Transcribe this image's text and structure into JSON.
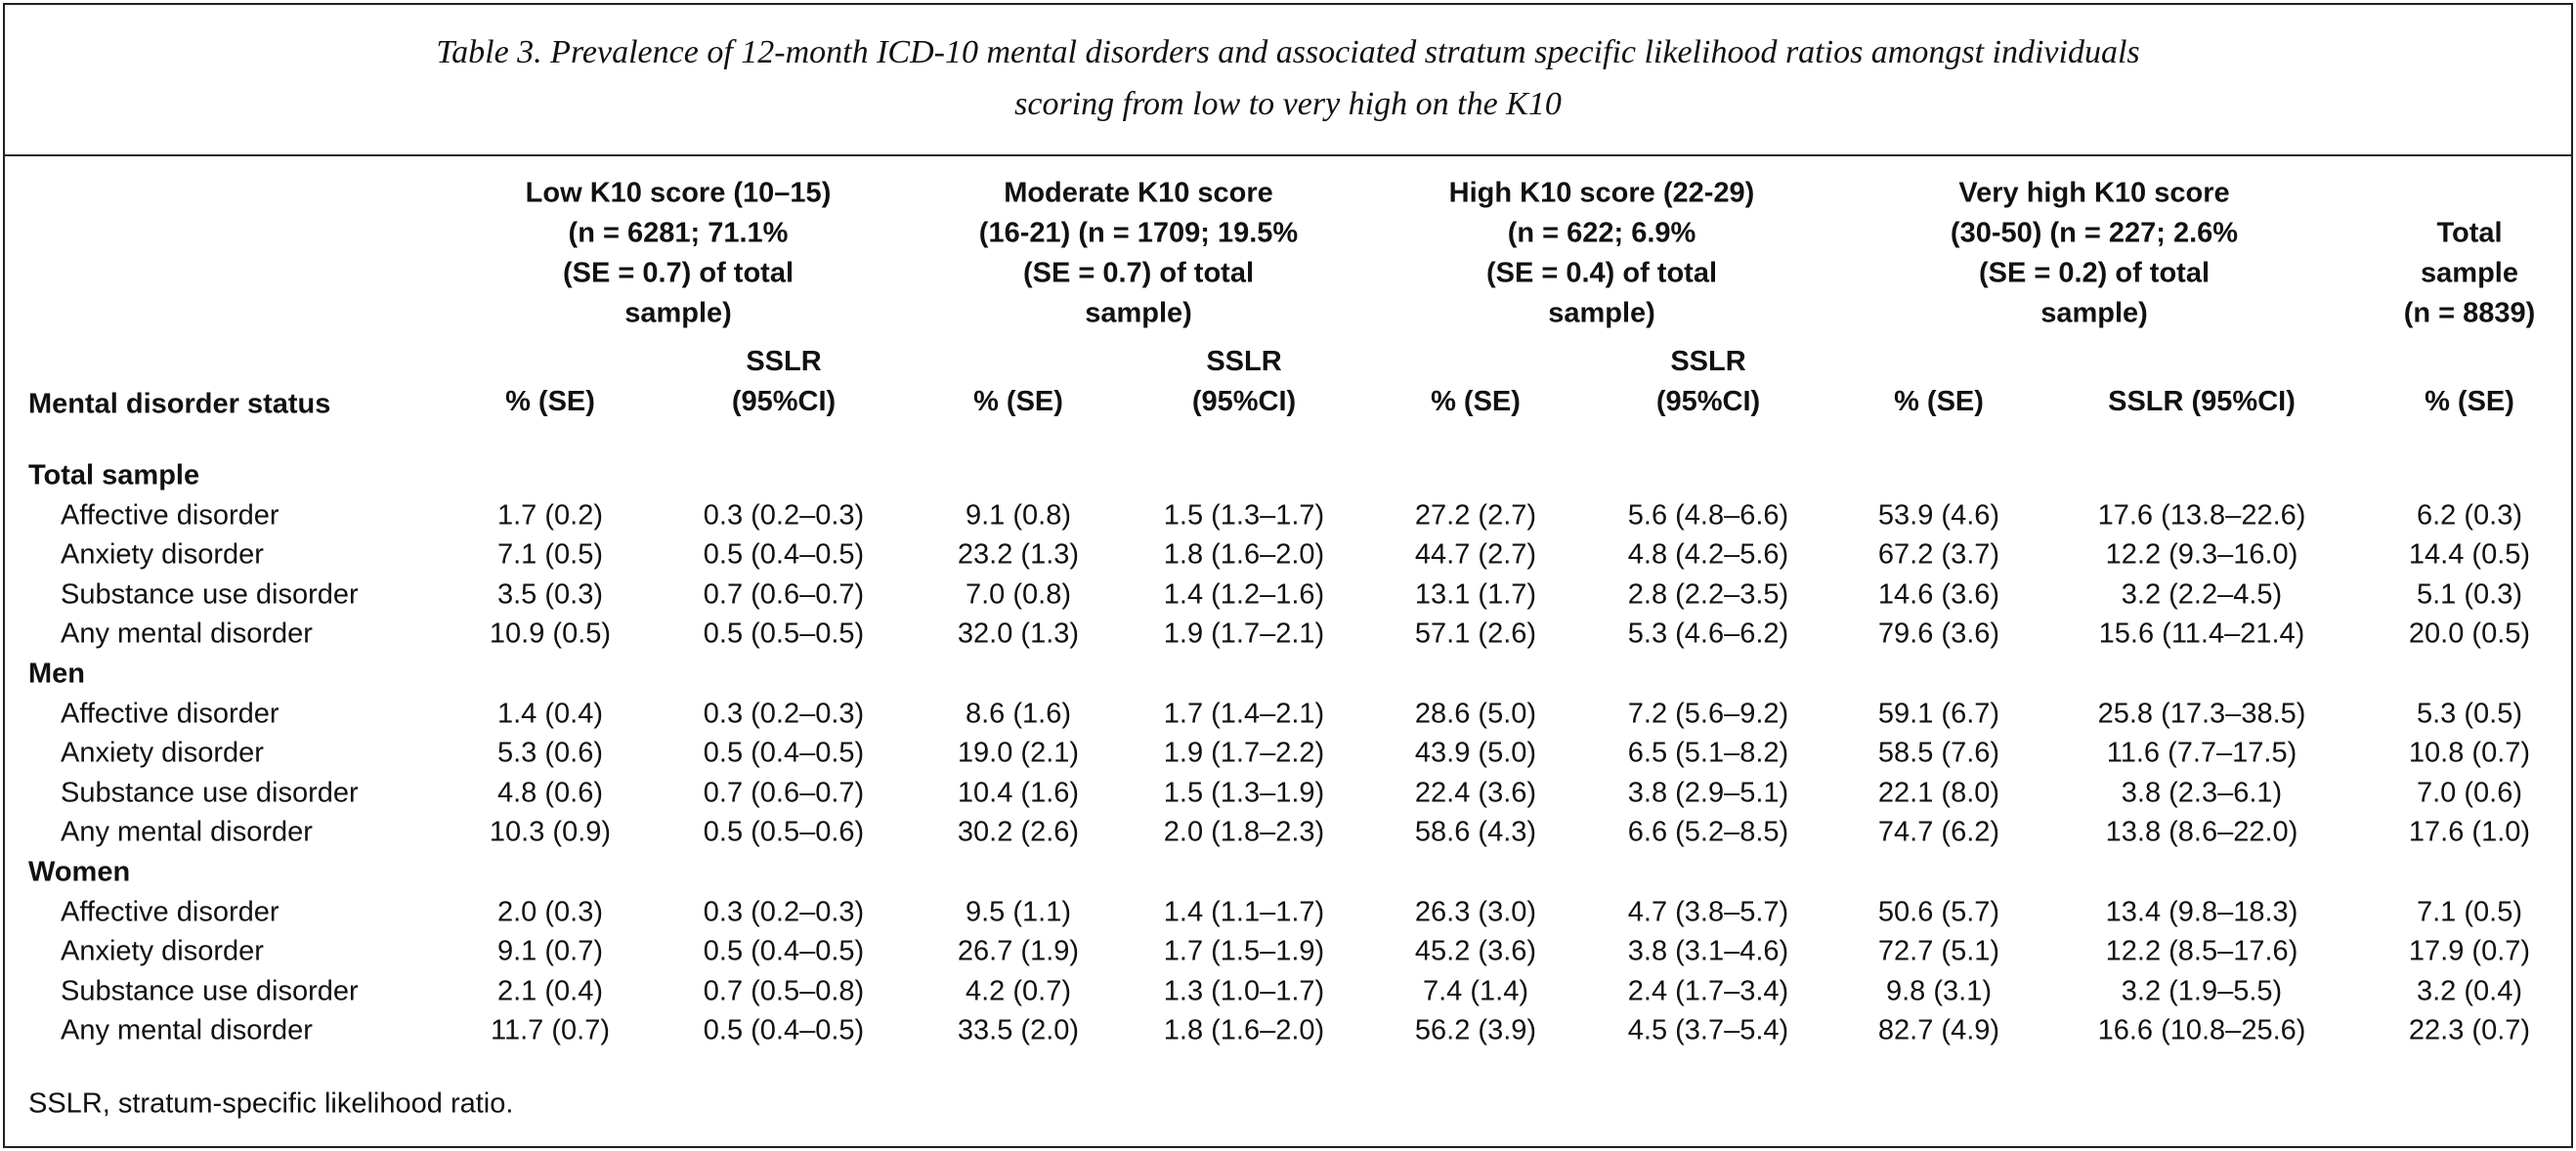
{
  "caption": [
    "Table 3. Prevalence of 12-month ICD-10 mental disorders and associated stratum specific likelihood ratios amongst individuals",
    "scoring from low to very high on the K10"
  ],
  "group_headers": [
    [
      "Low K10 score (10–15)",
      "(n = 6281; 71.1%",
      "(SE = 0.7) of total",
      "sample)"
    ],
    [
      "Moderate K10 score",
      "(16-21) (n = 1709; 19.5%",
      "(SE = 0.7) of total",
      "sample)"
    ],
    [
      "High K10 score (22-29)",
      "(n = 622; 6.9%",
      "(SE = 0.4) of total",
      "sample)"
    ],
    [
      "Very high K10 score",
      "(30-50) (n = 227; 2.6%",
      "(SE = 0.2) of total",
      "sample)"
    ],
    [
      "Total",
      "sample",
      "(n = 8839)"
    ]
  ],
  "columns": [
    "Mental disorder status",
    "% (SE)",
    "SSLR (95%CI)",
    "% (SE)",
    "SSLR (95%CI)",
    "% (SE)",
    "SSLR (95%CI)",
    "% (SE)",
    "SSLR (95%CI)",
    "% (SE)"
  ],
  "sections": [
    {
      "title": "Total sample",
      "rows": [
        [
          "Affective disorder",
          "1.7 (0.2)",
          "0.3 (0.2–0.3)",
          "9.1 (0.8)",
          "1.5 (1.3–1.7)",
          "27.2 (2.7)",
          "5.6 (4.8–6.6)",
          "53.9 (4.6)",
          "17.6 (13.8–22.6)",
          "6.2 (0.3)"
        ],
        [
          "Anxiety disorder",
          "7.1 (0.5)",
          "0.5 (0.4–0.5)",
          "23.2 (1.3)",
          "1.8 (1.6–2.0)",
          "44.7 (2.7)",
          "4.8 (4.2–5.6)",
          "67.2 (3.7)",
          "12.2 (9.3–16.0)",
          "14.4 (0.5)"
        ],
        [
          "Substance use disorder",
          "3.5 (0.3)",
          "0.7 (0.6–0.7)",
          "7.0 (0.8)",
          "1.4 (1.2–1.6)",
          "13.1 (1.7)",
          "2.8 (2.2–3.5)",
          "14.6 (3.6)",
          "3.2 (2.2–4.5)",
          "5.1 (0.3)"
        ],
        [
          "Any mental disorder",
          "10.9 (0.5)",
          "0.5 (0.5–0.5)",
          "32.0 (1.3)",
          "1.9 (1.7–2.1)",
          "57.1 (2.6)",
          "5.3 (4.6–6.2)",
          "79.6 (3.6)",
          "15.6 (11.4–21.4)",
          "20.0 (0.5)"
        ]
      ]
    },
    {
      "title": "Men",
      "rows": [
        [
          "Affective disorder",
          "1.4 (0.4)",
          "0.3 (0.2–0.3)",
          "8.6 (1.6)",
          "1.7 (1.4–2.1)",
          "28.6 (5.0)",
          "7.2 (5.6–9.2)",
          "59.1 (6.7)",
          "25.8 (17.3–38.5)",
          "5.3 (0.5)"
        ],
        [
          "Anxiety disorder",
          "5.3 (0.6)",
          "0.5 (0.4–0.5)",
          "19.0 (2.1)",
          "1.9 (1.7–2.2)",
          "43.9 (5.0)",
          "6.5 (5.1–8.2)",
          "58.5 (7.6)",
          "11.6 (7.7–17.5)",
          "10.8 (0.7)"
        ],
        [
          "Substance use disorder",
          "4.8 (0.6)",
          "0.7 (0.6–0.7)",
          "10.4 (1.6)",
          "1.5 (1.3–1.9)",
          "22.4 (3.6)",
          "3.8 (2.9–5.1)",
          "22.1 (8.0)",
          "3.8 (2.3–6.1)",
          "7.0 (0.6)"
        ],
        [
          "Any mental disorder",
          "10.3 (0.9)",
          "0.5 (0.5–0.6)",
          "30.2 (2.6)",
          "2.0 (1.8–2.3)",
          "58.6 (4.3)",
          "6.6 (5.2–8.5)",
          "74.7 (6.2)",
          "13.8 (8.6–22.0)",
          "17.6 (1.0)"
        ]
      ]
    },
    {
      "title": "Women",
      "rows": [
        [
          "Affective disorder",
          "2.0 (0.3)",
          "0.3 (0.2–0.3)",
          "9.5 (1.1)",
          "1.4 (1.1–1.7)",
          "26.3 (3.0)",
          "4.7 (3.8–5.7)",
          "50.6 (5.7)",
          "13.4 (9.8–18.3)",
          "7.1 (0.5)"
        ],
        [
          "Anxiety disorder",
          "9.1 (0.7)",
          "0.5 (0.4–0.5)",
          "26.7 (1.9)",
          "1.7 (1.5–1.9)",
          "45.2 (3.6)",
          "3.8 (3.1–4.6)",
          "72.7 (5.1)",
          "12.2 (8.5–17.6)",
          "17.9 (0.7)"
        ],
        [
          "Substance use disorder",
          "2.1 (0.4)",
          "0.7 (0.5–0.8)",
          "4.2 (0.7)",
          "1.3 (1.0–1.7)",
          "7.4 (1.4)",
          "2.4 (1.7–3.4)",
          "9.8 (3.1)",
          "3.2 (1.9–5.5)",
          "3.2 (0.4)"
        ],
        [
          "Any mental disorder",
          "11.7 (0.7)",
          "0.5 (0.4–0.5)",
          "33.5 (2.0)",
          "1.8 (1.6–2.0)",
          "56.2 (3.9)",
          "4.5 (3.7–5.4)",
          "82.7 (4.9)",
          "16.6 (10.8–25.6)",
          "22.3 (0.7)"
        ]
      ]
    }
  ],
  "footnote": "SSLR, stratum-specific likelihood ratio."
}
